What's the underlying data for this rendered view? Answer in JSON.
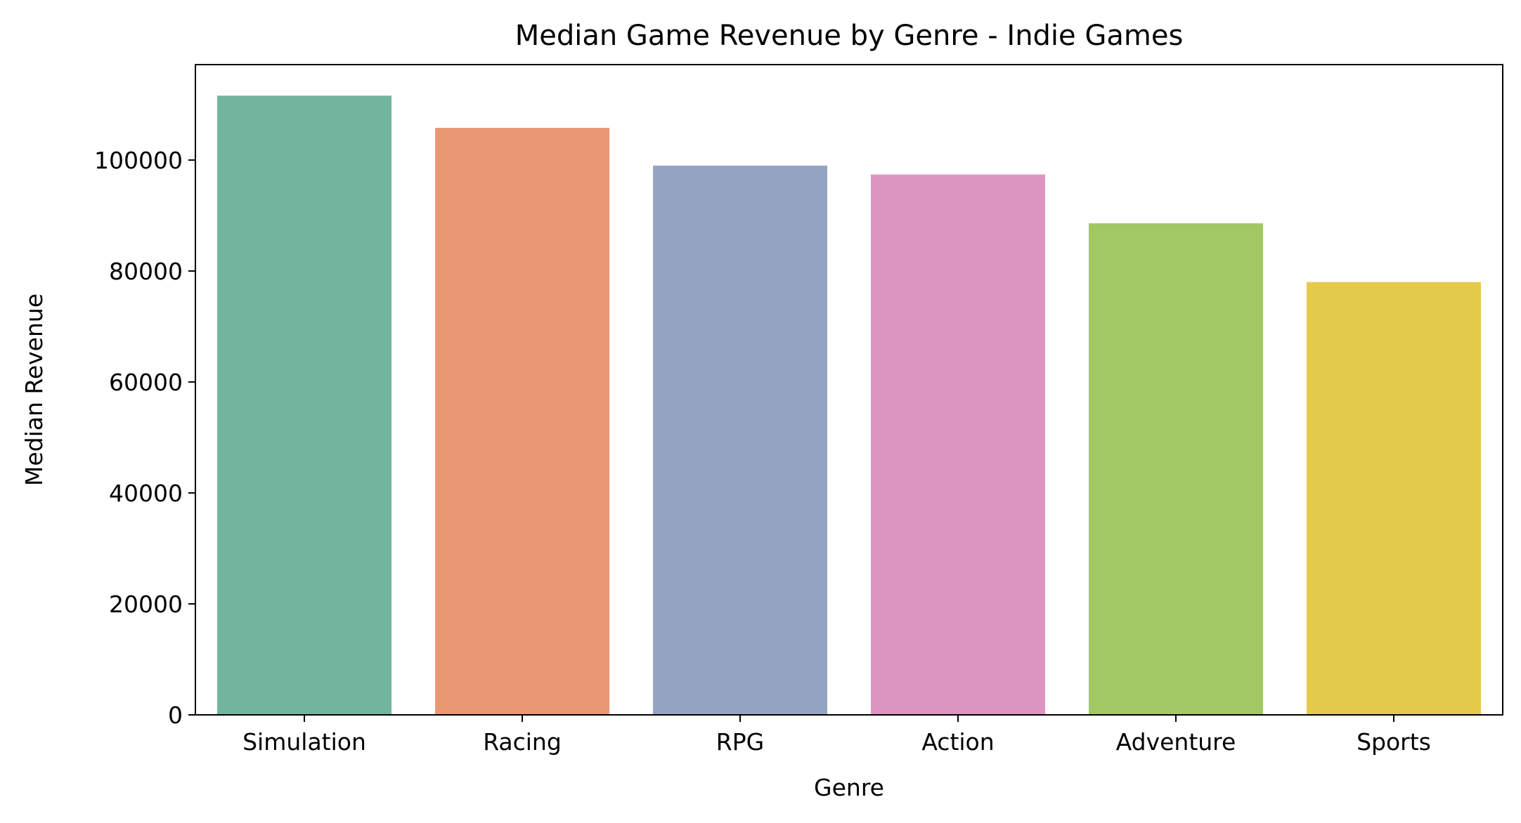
{
  "chart_data": {
    "type": "bar",
    "title": "Median Game Revenue by Genre - Indie Games",
    "xlabel": "Genre",
    "ylabel": "Median Revenue",
    "categories": [
      "Simulation",
      "Racing",
      "RPG",
      "Action",
      "Adventure",
      "Sports"
    ],
    "values": [
      111600,
      105800,
      99000,
      97400,
      88600,
      78000
    ],
    "colors": [
      "#72b59f",
      "#e99775",
      "#94a4c2",
      "#dc95c0",
      "#a2c866",
      "#e5ca4b"
    ],
    "ylim": [
      0,
      117200
    ],
    "yticks": [
      0,
      20000,
      40000,
      60000,
      80000,
      100000
    ],
    "ytick_labels": [
      "0",
      "20000",
      "40000",
      "60000",
      "80000",
      "100000"
    ],
    "grid": false,
    "legend": "none"
  }
}
